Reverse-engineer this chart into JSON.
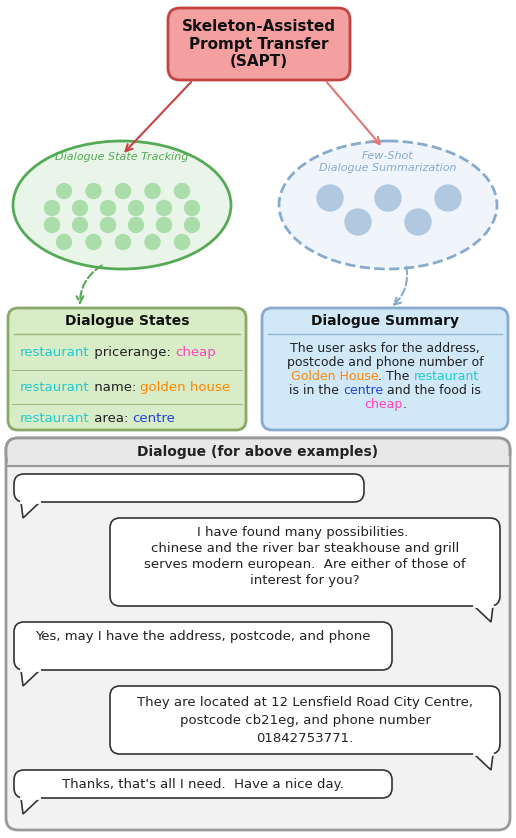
{
  "title": "Skeleton-Assisted\nPrompt Transfer\n(SAPT)",
  "title_box_color": "#f4a0a0",
  "title_box_edge": "#c44444",
  "green_ellipse_label": "Dialogue State Tracking",
  "blue_ellipse_label": "Few-Shot\nDialogue Summarization",
  "green_color": "#55aa55",
  "blue_color": "#88aacc",
  "green_fill": "#eaf5ea",
  "blue_fill": "#f0f5fc",
  "dot_color_green": "#aaddaa",
  "dot_color_blue": "#b0c8e0",
  "ds_title": "Dialogue States",
  "ds_box_color": "#d8ecc8",
  "ds_box_edge": "#88aa66",
  "summary_title": "Dialogue Summary",
  "summary_box_color": "#d0e8f8",
  "summary_box_edge": "#88aacc",
  "dialogue_title": "Dialogue (for above examples)",
  "bg_color": "#ffffff",
  "bubble_bg": "#ffffff",
  "bubble_edge": "#333333",
  "dial_box_color": "#f2f2f2",
  "dial_box_edge": "#999999",
  "dial_header_color": "#e8e8e8"
}
